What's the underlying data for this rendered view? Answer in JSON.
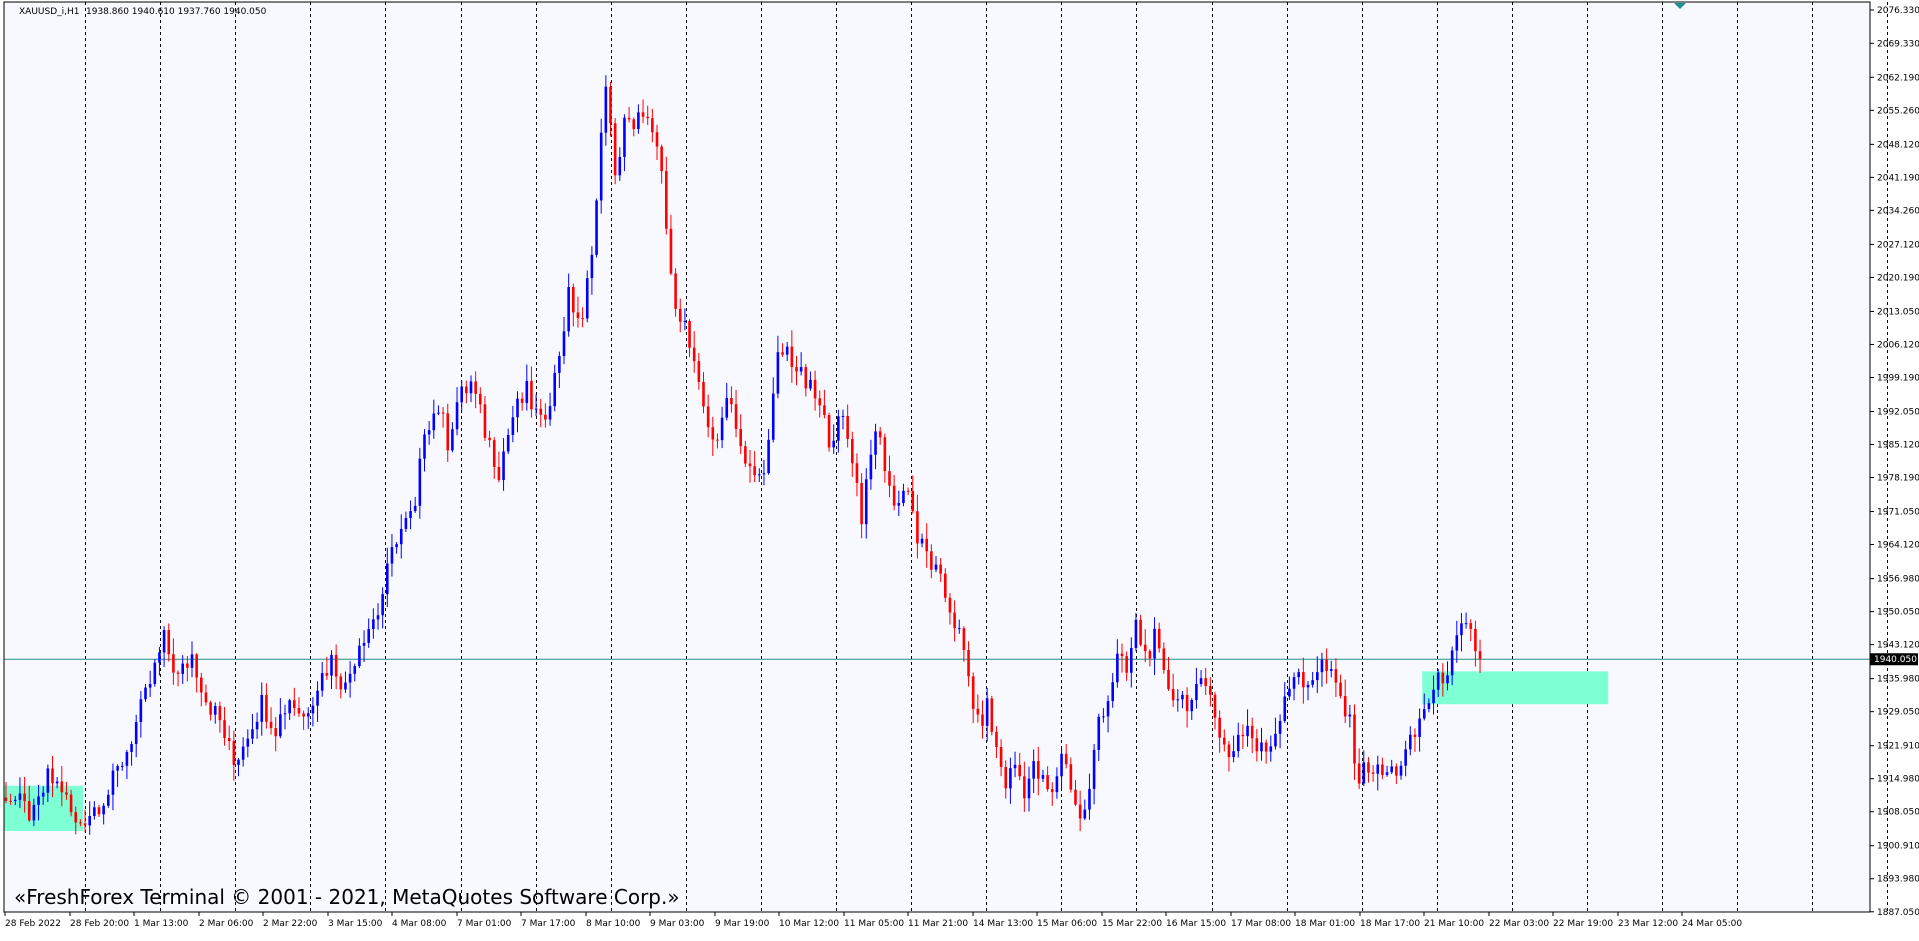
{
  "header": {
    "symbol": "XAUUSD_i,H1",
    "ohlc": "1938.860 1940.610 1937.760 1940.050"
  },
  "watermark": "«FreshForex Terminal © 2001 - 2021, MetaQuotes Software Corp.»",
  "colors": {
    "background": "#f8f8ff",
    "frame": "#000000",
    "bull": "#0000ff",
    "bear": "#ff0000",
    "price_line": "#1f8f8f",
    "zone": "#7fffd4",
    "separator": "#000000"
  },
  "chart_data": {
    "type": "candlestick",
    "timeframe": "H1",
    "ylim": [
      1887.0,
      2078.0
    ],
    "y_ticks": [
      "2076.330",
      "2069.330",
      "2062.190",
      "2055.260",
      "2048.120",
      "2041.190",
      "2034.260",
      "2027.120",
      "2020.190",
      "2013.050",
      "2006.120",
      "1999.190",
      "1992.050",
      "1985.120",
      "1978.190",
      "1971.050",
      "1964.120",
      "1956.980",
      "1950.050",
      "1943.120",
      "1935.980",
      "1929.050",
      "1921.910",
      "1914.980",
      "1908.050",
      "1900.910",
      "1893.980",
      "1887.050"
    ],
    "x_ticks": [
      "28 Feb 2022",
      "28 Feb 20:00",
      "1 Mar 13:00",
      "2 Mar 06:00",
      "2 Mar 22:00",
      "3 Mar 15:00",
      "4 Mar 08:00",
      "7 Mar 01:00",
      "7 Mar 17:00",
      "8 Mar 10:00",
      "9 Mar 03:00",
      "9 Mar 19:00",
      "10 Mar 12:00",
      "11 Mar 05:00",
      "11 Mar 21:00",
      "14 Mar 13:00",
      "15 Mar 06:00",
      "15 Mar 22:00",
      "16 Mar 15:00",
      "17 Mar 08:00",
      "18 Mar 01:00",
      "18 Mar 17:00",
      "21 Mar 10:00",
      "22 Mar 03:00",
      "22 Mar 19:00",
      "23 Mar 12:00",
      "24 Mar 05:00"
    ],
    "day_separator_count": 26,
    "current_price": "1940.050",
    "current_price_value": 1940.05,
    "anchors": [
      [
        0,
        1912
      ],
      [
        6,
        1907
      ],
      [
        9,
        1915
      ],
      [
        12,
        1913
      ],
      [
        15,
        1905
      ],
      [
        19,
        1909
      ],
      [
        22,
        1912
      ],
      [
        26,
        1921
      ],
      [
        30,
        1932
      ],
      [
        34,
        1944
      ],
      [
        37,
        1936
      ],
      [
        40,
        1941
      ],
      [
        43,
        1932
      ],
      [
        46,
        1927
      ],
      [
        49,
        1918
      ],
      [
        52,
        1925
      ],
      [
        55,
        1931
      ],
      [
        58,
        1926
      ],
      [
        61,
        1932
      ],
      [
        64,
        1928
      ],
      [
        67,
        1935
      ],
      [
        70,
        1940
      ],
      [
        73,
        1934
      ],
      [
        76,
        1944
      ],
      [
        80,
        1950
      ],
      [
        84,
        1966
      ],
      [
        88,
        1971
      ],
      [
        90,
        1989
      ],
      [
        93,
        1993
      ],
      [
        95,
        1986
      ],
      [
        97,
        1994
      ],
      [
        100,
        1998
      ],
      [
        103,
        1988
      ],
      [
        106,
        1980
      ],
      [
        109,
        1991
      ],
      [
        112,
        1996
      ],
      [
        115,
        1989
      ],
      [
        118,
        1999
      ],
      [
        121,
        2016
      ],
      [
        124,
        2010
      ],
      [
        127,
        2036
      ],
      [
        129,
        2062
      ],
      [
        131,
        2040
      ],
      [
        133,
        2054
      ],
      [
        135,
        2050
      ],
      [
        137,
        2056
      ],
      [
        139,
        2049
      ],
      [
        141,
        2042
      ],
      [
        143,
        2019
      ],
      [
        146,
        2010
      ],
      [
        149,
        1996
      ],
      [
        151,
        1990
      ],
      [
        153,
        1984
      ],
      [
        155,
        1997
      ],
      [
        157,
        1990
      ],
      [
        159,
        1980
      ],
      [
        162,
        1978
      ],
      [
        164,
        1985
      ],
      [
        166,
        2003
      ],
      [
        168,
        2005
      ],
      [
        171,
        1999
      ],
      [
        174,
        1995
      ],
      [
        177,
        1987
      ],
      [
        180,
        1990
      ],
      [
        182,
        1983
      ],
      [
        184,
        1970
      ],
      [
        186,
        1985
      ],
      [
        188,
        1986
      ],
      [
        190,
        1975
      ],
      [
        192,
        1973
      ],
      [
        194,
        1977
      ],
      [
        196,
        1965
      ],
      [
        198,
        1962
      ],
      [
        200,
        1958
      ],
      [
        203,
        1951
      ],
      [
        205,
        1945
      ],
      [
        207,
        1936
      ],
      [
        209,
        1926
      ],
      [
        211,
        1930
      ],
      [
        213,
        1921
      ],
      [
        215,
        1914
      ],
      [
        217,
        1918
      ],
      [
        219,
        1913
      ],
      [
        221,
        1917
      ],
      [
        223,
        1914
      ],
      [
        225,
        1911
      ],
      [
        227,
        1921
      ],
      [
        229,
        1914
      ],
      [
        231,
        1906
      ],
      [
        233,
        1912
      ],
      [
        235,
        1928
      ],
      [
        237,
        1932
      ],
      [
        239,
        1940
      ],
      [
        241,
        1937
      ],
      [
        243,
        1947
      ],
      [
        245,
        1941
      ],
      [
        247,
        1944
      ],
      [
        249,
        1936
      ],
      [
        251,
        1933
      ],
      [
        253,
        1932
      ],
      [
        255,
        1931
      ],
      [
        257,
        1934
      ],
      [
        259,
        1935
      ],
      [
        261,
        1923
      ],
      [
        263,
        1920
      ],
      [
        265,
        1924
      ],
      [
        267,
        1926
      ],
      [
        269,
        1921
      ],
      [
        271,
        1921
      ],
      [
        273,
        1925
      ],
      [
        275,
        1933
      ],
      [
        277,
        1937
      ],
      [
        279,
        1934
      ],
      [
        281,
        1937
      ],
      [
        283,
        1939
      ],
      [
        285,
        1936
      ],
      [
        287,
        1932
      ],
      [
        289,
        1926
      ],
      [
        291,
        1915
      ],
      [
        293,
        1918
      ],
      [
        295,
        1916
      ],
      [
        297,
        1916
      ],
      [
        299,
        1917
      ],
      [
        301,
        1920
      ],
      [
        303,
        1924
      ],
      [
        305,
        1930
      ],
      [
        307,
        1933
      ],
      [
        309,
        1937
      ],
      [
        311,
        1940
      ],
      [
        313,
        1946
      ],
      [
        315,
        1945
      ],
      [
        317,
        1940
      ]
    ],
    "zones": [
      {
        "from_bar": 0,
        "to_bar": 17,
        "low": 1904.0,
        "high": 1913.5
      },
      {
        "from_bar": 305,
        "to_bar": 345,
        "low": 1930.6,
        "high": 1937.5
      }
    ]
  }
}
